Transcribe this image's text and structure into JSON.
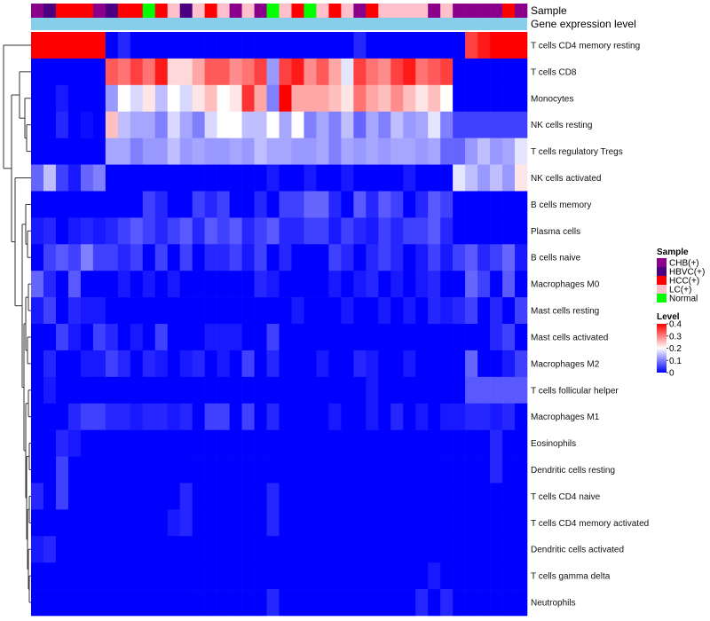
{
  "chart_data": {
    "type": "heatmap",
    "annotation_tracks": [
      "Sample",
      "Gene expression level"
    ],
    "sample_colors": {
      "CHB(+)": "#8b008b",
      "HBVC(+)": "#4b0082",
      "HCC(+)": "#ff0000",
      "LC(+)": "#ffc0cb",
      "Normal": "#00ff00"
    },
    "samples": [
      "CHB(+)",
      "HBVC(+)",
      "HCC(+)",
      "HCC(+)",
      "HCC(+)",
      "CHB(+)",
      "HBVC(+)",
      "HCC(+)",
      "HCC(+)",
      "Normal",
      "HCC(+)",
      "LC(+)",
      "HBVC(+)",
      "LC(+)",
      "HCC(+)",
      "LC(+)",
      "CHB(+)",
      "LC(+)",
      "CHB(+)",
      "Normal",
      "LC(+)",
      "HCC(+)",
      "Normal",
      "LC(+)",
      "HCC(+)",
      "LC(+)",
      "CHB(+)",
      "HCC(+)",
      "LC(+)",
      "LC(+)",
      "LC(+)",
      "LC(+)",
      "CHB(+)",
      "LC(+)",
      "CHB(+)",
      "CHB(+)",
      "CHB(+)",
      "CHB(+)",
      "HCC(+)",
      "CHB(+)"
    ],
    "expression_track_color": "#87ceeb",
    "rows": [
      "T cells CD4 memory resting",
      "T cells CD8",
      "Monocytes",
      "NK cells resting",
      "T cells regulatory  Tregs",
      "NK cells activated",
      "B cells memory",
      "Plasma cells",
      "B cells naive",
      "Macrophages M0",
      "Mast cells resting",
      "Mast cells activated",
      "Macrophages M2",
      "T cells follicular helper",
      "Macrophages M1",
      "Eosinophils",
      "Dendritic cells resting",
      "T cells CD4 naive",
      "T cells CD4 memory activated",
      "Dendritic cells activated",
      "T cells gamma delta",
      "Neutrophils"
    ],
    "values": [
      [
        0.4,
        0.4,
        0.4,
        0.4,
        0.4,
        0.4,
        0.0,
        0.03,
        0.0,
        0.0,
        0.0,
        0.0,
        0.0,
        0.0,
        0.0,
        0.0,
        0.0,
        0.0,
        0.0,
        0.0,
        0.0,
        0.0,
        0.0,
        0.0,
        0.0,
        0.0,
        0.03,
        0.0,
        0.0,
        0.0,
        0.0,
        0.0,
        0.0,
        0.0,
        0.0,
        0.35,
        0.38,
        0.4,
        0.4,
        0.4
      ],
      [
        0.0,
        0.0,
        0.0,
        0.0,
        0.0,
        0.0,
        0.33,
        0.31,
        0.35,
        0.31,
        0.38,
        0.23,
        0.23,
        0.27,
        0.33,
        0.33,
        0.29,
        0.31,
        0.35,
        0.12,
        0.35,
        0.38,
        0.29,
        0.33,
        0.27,
        0.18,
        0.35,
        0.31,
        0.29,
        0.35,
        0.38,
        0.31,
        0.33,
        0.35,
        0.0,
        0.0,
        0.0,
        0.0,
        0.0,
        0.0
      ],
      [
        0.0,
        0.0,
        0.02,
        0.0,
        0.0,
        0.0,
        0.12,
        0.2,
        0.17,
        0.22,
        0.15,
        0.2,
        0.17,
        0.22,
        0.25,
        0.2,
        0.22,
        0.36,
        0.27,
        0.1,
        0.4,
        0.27,
        0.27,
        0.27,
        0.25,
        0.22,
        0.31,
        0.27,
        0.25,
        0.29,
        0.25,
        0.22,
        0.25,
        0.2,
        0.0,
        0.0,
        0.0,
        0.0,
        0.0,
        0.0
      ],
      [
        0.0,
        0.0,
        0.03,
        0.0,
        0.01,
        0.0,
        0.25,
        0.15,
        0.13,
        0.13,
        0.1,
        0.17,
        0.13,
        0.1,
        0.17,
        0.2,
        0.2,
        0.15,
        0.15,
        0.2,
        0.13,
        0.2,
        0.1,
        0.13,
        0.1,
        0.15,
        0.08,
        0.13,
        0.1,
        0.15,
        0.12,
        0.13,
        0.18,
        0.1,
        0.05,
        0.05,
        0.05,
        0.05,
        0.05,
        0.05
      ],
      [
        0.0,
        0.0,
        0.0,
        0.0,
        0.0,
        0.0,
        0.13,
        0.13,
        0.1,
        0.12,
        0.12,
        0.15,
        0.12,
        0.13,
        0.12,
        0.12,
        0.13,
        0.12,
        0.15,
        0.13,
        0.13,
        0.12,
        0.12,
        0.13,
        0.1,
        0.13,
        0.12,
        0.13,
        0.12,
        0.13,
        0.13,
        0.12,
        0.13,
        0.08,
        0.08,
        0.12,
        0.15,
        0.12,
        0.13,
        0.18
      ],
      [
        0.08,
        0.15,
        0.05,
        0.02,
        0.08,
        0.1,
        0.0,
        0.0,
        0.0,
        0.0,
        0.0,
        0.0,
        0.0,
        0.0,
        0.0,
        0.0,
        0.0,
        0.0,
        0.0,
        0.02,
        0.0,
        0.0,
        0.02,
        0.0,
        0.0,
        0.02,
        0.0,
        0.0,
        0.0,
        0.0,
        0.02,
        0.0,
        0.0,
        0.0,
        0.18,
        0.15,
        0.12,
        0.15,
        0.12,
        0.22
      ],
      [
        0.0,
        0.0,
        0.0,
        0.0,
        0.0,
        0.0,
        0.0,
        0.0,
        0.0,
        0.05,
        0.03,
        0.0,
        0.0,
        0.05,
        0.03,
        0.05,
        0.0,
        0.0,
        0.03,
        0.0,
        0.05,
        0.05,
        0.08,
        0.08,
        0.03,
        0.0,
        0.07,
        0.03,
        0.07,
        0.05,
        0.0,
        0.03,
        0.07,
        0.05,
        0.0,
        0.0,
        0.0,
        0.0,
        0.0,
        0.0
      ],
      [
        0.02,
        0.03,
        0.0,
        0.02,
        0.03,
        0.02,
        0.03,
        0.05,
        0.07,
        0.05,
        0.03,
        0.05,
        0.07,
        0.03,
        0.07,
        0.05,
        0.07,
        0.03,
        0.05,
        0.07,
        0.03,
        0.03,
        0.05,
        0.05,
        0.02,
        0.05,
        0.03,
        0.02,
        0.05,
        0.03,
        0.05,
        0.05,
        0.07,
        0.03,
        0.0,
        0.0,
        0.0,
        0.0,
        0.0,
        0.0
      ],
      [
        0.0,
        0.05,
        0.07,
        0.05,
        0.1,
        0.05,
        0.05,
        0.03,
        0.05,
        0.0,
        0.05,
        0.0,
        0.05,
        0.0,
        0.03,
        0.03,
        0.05,
        0.02,
        0.05,
        0.0,
        0.03,
        0.0,
        0.0,
        0.0,
        0.05,
        0.03,
        0.0,
        0.03,
        0.05,
        0.03,
        0.0,
        0.02,
        0.05,
        0.02,
        0.05,
        0.07,
        0.03,
        0.05,
        0.08,
        0.02
      ],
      [
        0.08,
        0.03,
        0.0,
        0.07,
        0.0,
        0.0,
        0.0,
        0.02,
        0.0,
        0.02,
        0.0,
        0.02,
        0.0,
        0.0,
        0.0,
        0.0,
        0.0,
        0.0,
        0.03,
        0.02,
        0.0,
        0.0,
        0.0,
        0.0,
        0.02,
        0.0,
        0.02,
        0.03,
        0.0,
        0.02,
        0.0,
        0.02,
        0.03,
        0.0,
        0.0,
        0.08,
        0.05,
        0.0,
        0.07,
        0.0
      ],
      [
        0.02,
        0.05,
        0.0,
        0.03,
        0.02,
        0.02,
        0.0,
        0.0,
        0.0,
        0.0,
        0.0,
        0.0,
        0.0,
        0.0,
        0.0,
        0.0,
        0.0,
        0.0,
        0.0,
        0.0,
        0.0,
        0.02,
        0.0,
        0.0,
        0.0,
        0.02,
        0.0,
        0.0,
        0.02,
        0.0,
        0.02,
        0.0,
        0.03,
        0.02,
        0.03,
        0.05,
        0.0,
        0.03,
        0.0,
        0.05
      ],
      [
        0.0,
        0.0,
        0.05,
        0.02,
        0.0,
        0.05,
        0.03,
        0.0,
        0.02,
        0.0,
        0.05,
        0.0,
        0.0,
        0.0,
        0.02,
        0.02,
        0.02,
        0.0,
        0.0,
        0.05,
        0.0,
        0.0,
        0.0,
        0.0,
        0.0,
        0.0,
        0.0,
        0.0,
        0.0,
        0.0,
        0.0,
        0.0,
        0.0,
        0.0,
        0.0,
        0.0,
        0.0,
        0.03,
        0.05,
        0.0
      ],
      [
        0.0,
        0.03,
        0.0,
        0.0,
        0.02,
        0.02,
        0.05,
        0.03,
        0.0,
        0.03,
        0.02,
        0.0,
        0.02,
        0.03,
        0.0,
        0.02,
        0.0,
        0.05,
        0.0,
        0.03,
        0.0,
        0.0,
        0.0,
        0.02,
        0.0,
        0.0,
        0.03,
        0.02,
        0.0,
        0.0,
        0.02,
        0.0,
        0.0,
        0.0,
        0.0,
        0.08,
        0.0,
        0.0,
        0.02,
        0.05
      ],
      [
        0.0,
        0.02,
        0.0,
        0.0,
        0.0,
        0.0,
        0.0,
        0.0,
        0.0,
        0.0,
        0.0,
        0.0,
        0.0,
        0.0,
        0.0,
        0.0,
        0.0,
        0.0,
        0.0,
        0.0,
        0.0,
        0.0,
        0.0,
        0.0,
        0.0,
        0.0,
        0.0,
        0.02,
        0.0,
        0.0,
        0.0,
        0.0,
        0.0,
        0.0,
        0.0,
        0.07,
        0.07,
        0.07,
        0.07,
        0.07
      ],
      [
        0.0,
        0.0,
        0.0,
        0.03,
        0.05,
        0.05,
        0.03,
        0.03,
        0.02,
        0.03,
        0.03,
        0.02,
        0.03,
        0.0,
        0.05,
        0.05,
        0.0,
        0.05,
        0.0,
        0.03,
        0.0,
        0.0,
        0.0,
        0.0,
        0.02,
        0.0,
        0.0,
        0.02,
        0.0,
        0.03,
        0.0,
        0.02,
        0.0,
        0.02,
        0.02,
        0.03,
        0.03,
        0.02,
        0.03,
        0.0
      ],
      [
        0.0,
        0.0,
        0.03,
        0.02,
        0.0,
        0.0,
        0.0,
        0.0,
        0.0,
        0.0,
        0.0,
        0.0,
        0.0,
        0.0,
        0.0,
        0.0,
        0.0,
        0.0,
        0.0,
        0.0,
        0.0,
        0.0,
        0.0,
        0.0,
        0.0,
        0.0,
        0.0,
        0.0,
        0.0,
        0.0,
        0.0,
        0.0,
        0.0,
        0.0,
        0.0,
        0.0,
        0.0,
        0.03,
        0.0,
        0.0
      ],
      [
        0.0,
        0.0,
        0.05,
        0.0,
        0.0,
        0.0,
        0.0,
        0.0,
        0.0,
        0.0,
        0.0,
        0.0,
        0.0,
        0.0,
        0.0,
        0.0,
        0.0,
        0.0,
        0.0,
        0.0,
        0.0,
        0.0,
        0.0,
        0.0,
        0.0,
        0.0,
        0.0,
        0.0,
        0.0,
        0.0,
        0.0,
        0.0,
        0.0,
        0.0,
        0.0,
        0.0,
        0.0,
        0.03,
        0.0,
        0.0
      ],
      [
        0.03,
        0.0,
        0.05,
        0.0,
        0.0,
        0.0,
        0.0,
        0.0,
        0.0,
        0.0,
        0.0,
        0.0,
        0.03,
        0.0,
        0.0,
        0.0,
        0.0,
        0.0,
        0.0,
        0.03,
        0.0,
        0.0,
        0.0,
        0.0,
        0.0,
        0.0,
        0.0,
        0.0,
        0.0,
        0.0,
        0.0,
        0.0,
        0.0,
        0.0,
        0.0,
        0.0,
        0.0,
        0.0,
        0.0,
        0.0
      ],
      [
        0.0,
        0.0,
        0.0,
        0.0,
        0.0,
        0.0,
        0.0,
        0.0,
        0.0,
        0.0,
        0.0,
        0.02,
        0.03,
        0.0,
        0.0,
        0.0,
        0.0,
        0.0,
        0.0,
        0.03,
        0.0,
        0.0,
        0.0,
        0.0,
        0.0,
        0.0,
        0.0,
        0.0,
        0.0,
        0.0,
        0.0,
        0.0,
        0.0,
        0.0,
        0.0,
        0.0,
        0.0,
        0.0,
        0.0,
        0.0
      ],
      [
        0.02,
        0.03,
        0.0,
        0.0,
        0.0,
        0.0,
        0.0,
        0.0,
        0.0,
        0.0,
        0.0,
        0.0,
        0.0,
        0.0,
        0.0,
        0.0,
        0.0,
        0.0,
        0.0,
        0.0,
        0.0,
        0.0,
        0.0,
        0.0,
        0.0,
        0.0,
        0.0,
        0.0,
        0.0,
        0.0,
        0.0,
        0.0,
        0.0,
        0.0,
        0.0,
        0.0,
        0.0,
        0.0,
        0.0,
        0.0
      ],
      [
        0.0,
        0.0,
        0.0,
        0.0,
        0.0,
        0.0,
        0.0,
        0.0,
        0.0,
        0.0,
        0.0,
        0.0,
        0.0,
        0.0,
        0.0,
        0.0,
        0.0,
        0.0,
        0.0,
        0.0,
        0.0,
        0.0,
        0.0,
        0.0,
        0.0,
        0.0,
        0.0,
        0.0,
        0.0,
        0.0,
        0.0,
        0.0,
        0.02,
        0.0,
        0.0,
        0.0,
        0.0,
        0.0,
        0.0,
        0.0
      ],
      [
        0.0,
        0.0,
        0.0,
        0.0,
        0.0,
        0.0,
        0.0,
        0.0,
        0.0,
        0.0,
        0.0,
        0.0,
        0.0,
        0.0,
        0.0,
        0.0,
        0.0,
        0.0,
        0.0,
        0.03,
        0.0,
        0.0,
        0.0,
        0.0,
        0.0,
        0.0,
        0.0,
        0.0,
        0.0,
        0.0,
        0.0,
        0.03,
        0.0,
        0.03,
        0.0,
        0.0,
        0.0,
        0.0,
        0.0,
        0.0
      ]
    ],
    "color_scale": {
      "min": 0,
      "max": 0.4,
      "low": "#0000ff",
      "mid": "#ffffff",
      "high": "#ff0000",
      "midpoint": 0.2
    },
    "legend_sample": {
      "title": "Sample",
      "entries": [
        "CHB(+)",
        "HBVC(+)",
        "HCC(+)",
        "LC(+)",
        "Normal"
      ]
    },
    "legend_level": {
      "title": "Level",
      "ticks": [
        "0.4",
        "0.3",
        "0.2",
        "0.1",
        "0"
      ],
      "tick_values": [
        0.4,
        0.3,
        0.2,
        0.1,
        0
      ]
    },
    "dendrogram": "row",
    "legend_position": "right"
  }
}
